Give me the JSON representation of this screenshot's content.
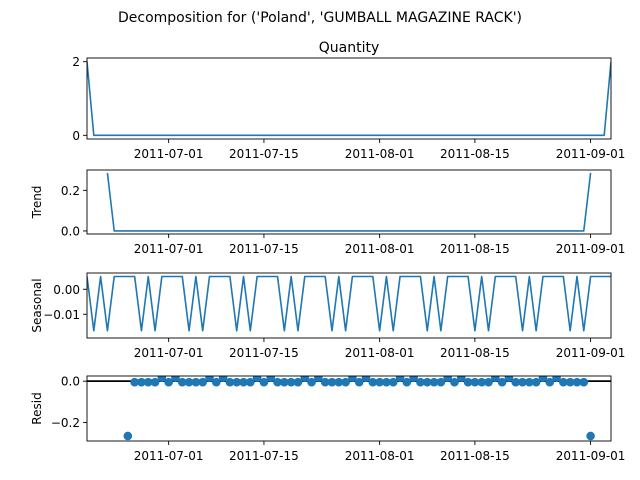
{
  "figure": {
    "suptitle": "Decomposition for ('Poland', 'GUMBALL MAGAZINE RACK')"
  },
  "chart_data": [
    {
      "type": "line",
      "name": "observed",
      "title": "Quantity",
      "ylabel": "",
      "xlim": [
        "2011-06-19",
        "2011-09-04"
      ],
      "ylim": [
        -0.1,
        2.1
      ],
      "yticks": [
        0,
        2
      ],
      "ytick_labels": [
        "0",
        "2"
      ],
      "xticks": [
        "2011-07-01",
        "2011-07-15",
        "2011-08-01",
        "2011-08-15",
        "2011-09-01"
      ],
      "series": [
        {
          "color": "#1f77b4",
          "points": [
            [
              "2011-06-19",
              2
            ],
            [
              "2011-06-20",
              0
            ],
            [
              "2011-09-03",
              0
            ],
            [
              "2011-09-04",
              2
            ]
          ]
        }
      ]
    },
    {
      "type": "line",
      "name": "trend",
      "title": "",
      "ylabel": "Trend",
      "xlim": [
        "2011-06-19",
        "2011-09-04"
      ],
      "ylim": [
        -0.015,
        0.3
      ],
      "yticks": [
        0.0,
        0.2
      ],
      "ytick_labels": [
        "0.0",
        "0.2"
      ],
      "xticks": [
        "2011-07-01",
        "2011-07-15",
        "2011-08-01",
        "2011-08-15",
        "2011-09-01"
      ],
      "series": [
        {
          "color": "#1f77b4",
          "points": [
            [
              "2011-06-22",
              0.2857
            ],
            [
              "2011-06-23",
              0
            ],
            [
              "2011-08-31",
              0
            ],
            [
              "2011-09-01",
              0.2857
            ]
          ]
        }
      ]
    },
    {
      "type": "line",
      "name": "seasonal",
      "title": "",
      "ylabel": "Seasonal",
      "xlim": [
        "2011-06-19",
        "2011-09-04"
      ],
      "ylim": [
        -0.0195,
        0.0065
      ],
      "yticks": [
        0.0,
        -0.01
      ],
      "ytick_labels": [
        "0.00",
        "−0.01"
      ],
      "xticks": [
        "2011-07-01",
        "2011-07-15",
        "2011-08-01",
        "2011-08-15",
        "2011-09-01"
      ],
      "start": "2011-06-19",
      "weekly_pattern": [
        0.0051,
        -0.0166,
        0.0051,
        -0.0166,
        0.0051,
        0.0051,
        0.0051
      ],
      "series": [
        {
          "color": "#1f77b4"
        }
      ]
    },
    {
      "type": "scatter",
      "name": "resid",
      "title": "",
      "ylabel": "Resid",
      "xlim": [
        "2011-06-19",
        "2011-09-04"
      ],
      "ylim": [
        -0.29,
        0.025
      ],
      "yticks": [
        0.0,
        -0.2
      ],
      "ytick_labels": [
        "0.0",
        "−0.2"
      ],
      "xticks": [
        "2011-07-01",
        "2011-07-15",
        "2011-08-01",
        "2011-08-15",
        "2011-09-01"
      ],
      "baseline": 0,
      "series": [
        {
          "color": "#1f77b4",
          "points": [
            [
              "2011-06-25",
              -0.2657
            ],
            [
              "2011-06-26",
              -0.0051
            ],
            [
              "2011-06-27",
              -0.0051
            ],
            [
              "2011-06-28",
              -0.0051
            ],
            [
              "2011-06-29",
              -0.0051
            ],
            [
              "2011-06-30",
              0.0166
            ],
            [
              "2011-07-01",
              -0.0051
            ],
            [
              "2011-07-02",
              0.0166
            ],
            [
              "2011-07-03",
              -0.0051
            ],
            [
              "2011-07-04",
              -0.0051
            ],
            [
              "2011-07-05",
              -0.0051
            ],
            [
              "2011-07-06",
              -0.0051
            ],
            [
              "2011-07-07",
              0.0166
            ],
            [
              "2011-07-08",
              -0.0051
            ],
            [
              "2011-07-09",
              0.0166
            ],
            [
              "2011-07-10",
              -0.0051
            ],
            [
              "2011-07-11",
              -0.0051
            ],
            [
              "2011-07-12",
              -0.0051
            ],
            [
              "2011-07-13",
              -0.0051
            ],
            [
              "2011-07-14",
              0.0166
            ],
            [
              "2011-07-15",
              -0.0051
            ],
            [
              "2011-07-16",
              0.0166
            ],
            [
              "2011-07-17",
              -0.0051
            ],
            [
              "2011-07-18",
              -0.0051
            ],
            [
              "2011-07-19",
              -0.0051
            ],
            [
              "2011-07-20",
              -0.0051
            ],
            [
              "2011-07-21",
              0.0166
            ],
            [
              "2011-07-22",
              -0.0051
            ],
            [
              "2011-07-23",
              0.0166
            ],
            [
              "2011-07-24",
              -0.0051
            ],
            [
              "2011-07-25",
              -0.0051
            ],
            [
              "2011-07-26",
              -0.0051
            ],
            [
              "2011-07-27",
              -0.0051
            ],
            [
              "2011-07-28",
              0.0166
            ],
            [
              "2011-07-29",
              -0.0051
            ],
            [
              "2011-07-30",
              0.0166
            ],
            [
              "2011-07-31",
              -0.0051
            ],
            [
              "2011-08-01",
              -0.0051
            ],
            [
              "2011-08-02",
              -0.0051
            ],
            [
              "2011-08-03",
              -0.0051
            ],
            [
              "2011-08-04",
              0.0166
            ],
            [
              "2011-08-05",
              -0.0051
            ],
            [
              "2011-08-06",
              0.0166
            ],
            [
              "2011-08-07",
              -0.0051
            ],
            [
              "2011-08-08",
              -0.0051
            ],
            [
              "2011-08-09",
              -0.0051
            ],
            [
              "2011-08-10",
              -0.0051
            ],
            [
              "2011-08-11",
              0.0166
            ],
            [
              "2011-08-12",
              -0.0051
            ],
            [
              "2011-08-13",
              0.0166
            ],
            [
              "2011-08-14",
              -0.0051
            ],
            [
              "2011-08-15",
              -0.0051
            ],
            [
              "2011-08-16",
              -0.0051
            ],
            [
              "2011-08-17",
              -0.0051
            ],
            [
              "2011-08-18",
              0.0166
            ],
            [
              "2011-08-19",
              -0.0051
            ],
            [
              "2011-08-20",
              0.0166
            ],
            [
              "2011-08-21",
              -0.0051
            ],
            [
              "2011-08-22",
              -0.0051
            ],
            [
              "2011-08-23",
              -0.0051
            ],
            [
              "2011-08-24",
              -0.0051
            ],
            [
              "2011-08-25",
              0.0166
            ],
            [
              "2011-08-26",
              -0.0051
            ],
            [
              "2011-08-27",
              0.0166
            ],
            [
              "2011-08-28",
              -0.0051
            ],
            [
              "2011-08-29",
              -0.0051
            ],
            [
              "2011-08-30",
              -0.0051
            ],
            [
              "2011-08-31",
              -0.0051
            ],
            [
              "2011-09-01",
              -0.2657
            ]
          ]
        }
      ]
    }
  ]
}
